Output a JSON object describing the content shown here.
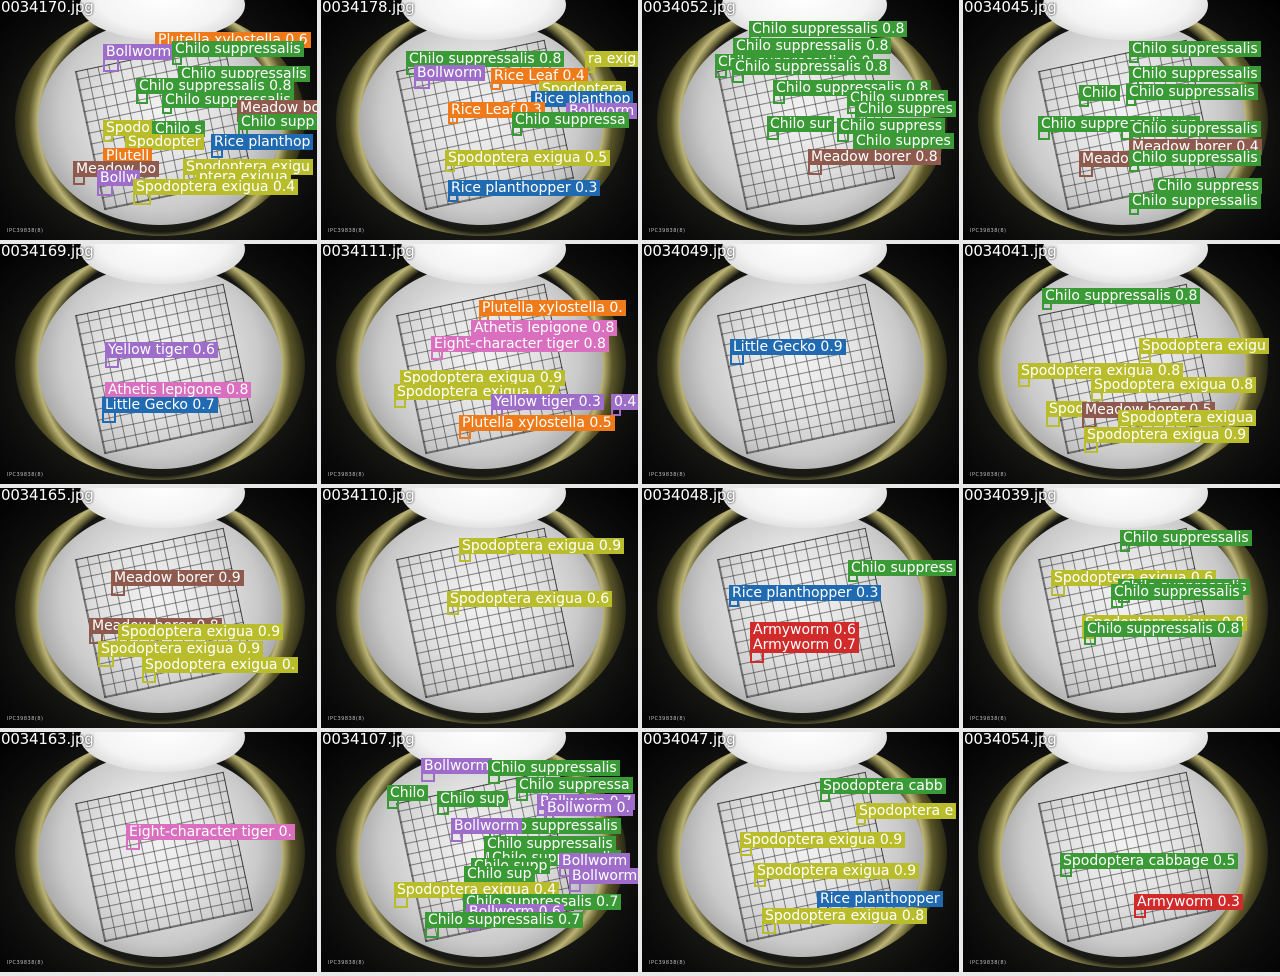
{
  "colors": {
    "Chilo suppressalis": "#3a9a35",
    "Plutella xylostella": "#ef7a1a",
    "Bollworm": "#9d6dc9",
    "Meadow borer": "#8e5a4e",
    "Spodoptera exigua": "#b9bd2c",
    "Rice planthopper": "#1f6ab0",
    "Rice Leaf": "#ef7a1a",
    "Yellow tiger": "#9d6dc9",
    "Athetis lepigone": "#d96fbe",
    "Little Gecko": "#1f6ab0",
    "Eight-character tiger": "#d96fbe",
    "Armyworm": "#d12a2a",
    "Spodoptera cabbage": "#3a9a35"
  },
  "stamp_text": "IPC39838(8)",
  "tiles": [
    {
      "file": "0034170.jpg",
      "detections": [
        {
          "label": "Plutella xylostella 0.6",
          "color": "Plutella xylostella"
        },
        {
          "label": "Bollworm",
          "color": "Bollworm"
        },
        {
          "label": "Chilo suppressalis",
          "color": "Chilo suppressalis"
        },
        {
          "label": "Chilo suppressalis",
          "color": "Chilo suppressalis"
        },
        {
          "label": "Chilo suppressalis 0.8",
          "color": "Chilo suppressalis"
        },
        {
          "label": "Chilo suppressalis",
          "color": "Chilo suppressalis"
        },
        {
          "label": "Meadow bo",
          "color": "Meadow borer"
        },
        {
          "label": "Spodo",
          "color": "Spodoptera exigua"
        },
        {
          "label": "Chilo s",
          "color": "Chilo suppressalis"
        },
        {
          "label": "Chilo supp",
          "color": "Chilo suppressalis"
        },
        {
          "label": "Spodopter",
          "color": "Spodoptera exigua"
        },
        {
          "label": "Rice planthop",
          "color": "Rice planthopper"
        },
        {
          "label": "Plutell",
          "color": "Plutella xylostella"
        },
        {
          "label": "Meadow bo",
          "color": "Meadow borer"
        },
        {
          "label": "Spodoptera exigu",
          "color": "Spodoptera exigua"
        },
        {
          "label": "Bollw",
          "color": "Bollworm"
        },
        {
          "label": "ptera exigua",
          "color": "Spodoptera exigua"
        },
        {
          "label": "Spodoptera exigua 0.4",
          "color": "Spodoptera exigua"
        }
      ]
    },
    {
      "file": "0034178.jpg",
      "detections": [
        {
          "label": "Chilo suppressalis 0.8",
          "color": "Chilo suppressalis"
        },
        {
          "label": "ra exig",
          "color": "Spodoptera exigua"
        },
        {
          "label": "Bollworm",
          "color": "Bollworm"
        },
        {
          "label": "Rice Leaf 0.4",
          "color": "Rice Leaf"
        },
        {
          "label": "Spodoptera",
          "color": "Spodoptera exigua"
        },
        {
          "label": "Rice planthop",
          "color": "Rice planthopper"
        },
        {
          "label": "Rice Leaf 0.3",
          "color": "Rice Leaf"
        },
        {
          "label": "Bollworm",
          "color": "Bollworm"
        },
        {
          "label": "Chilo suppressa",
          "color": "Chilo suppressalis"
        },
        {
          "label": "Spodoptera exigua 0.5",
          "color": "Spodoptera exigua"
        },
        {
          "label": "Rice planthopper 0.3",
          "color": "Rice planthopper"
        }
      ]
    },
    {
      "file": "0034052.jpg",
      "detections": [
        {
          "label": "Chilo suppressalis 0.8",
          "color": "Chilo suppressalis"
        },
        {
          "label": "Chilo suppressalis 0.8",
          "color": "Chilo suppressalis"
        },
        {
          "label": "Chilo suppressalis 0.8",
          "color": "Chilo suppressalis"
        },
        {
          "label": "Chilo suppressalis 0.8",
          "color": "Chilo suppressalis"
        },
        {
          "label": "Chilo suppressalis 0.8",
          "color": "Chilo suppressalis"
        },
        {
          "label": "Chilo suppres",
          "color": "Chilo suppressalis"
        },
        {
          "label": "Chilo suppres",
          "color": "Chilo suppressalis"
        },
        {
          "label": "Chilo sur",
          "color": "Chilo suppressalis"
        },
        {
          "label": "Chilo suppress",
          "color": "Chilo suppressalis"
        },
        {
          "label": "Chilo suppres",
          "color": "Chilo suppressalis"
        },
        {
          "label": "Meadow borer 0.8",
          "color": "Meadow borer"
        }
      ]
    },
    {
      "file": "0034045.jpg",
      "detections": [
        {
          "label": "Chilo suppressalis",
          "color": "Chilo suppressalis"
        },
        {
          "label": "Chilo suppressalis",
          "color": "Chilo suppressalis"
        },
        {
          "label": "Chilo suppressalis",
          "color": "Chilo suppressalis"
        },
        {
          "label": "Chilo",
          "color": "Chilo suppressalis"
        },
        {
          "label": "Chilo supp",
          "color": "Chilo suppressalis"
        },
        {
          "label": "Chilo suppressalis",
          "color": "Chilo suppressalis"
        },
        {
          "label": "Chilo suppressalis",
          "color": "Chilo suppressalis"
        },
        {
          "label": "Meadow borer 0.4",
          "color": "Meadow borer"
        },
        {
          "label": "Meado",
          "color": "Meadow borer"
        },
        {
          "label": "Chilo suppressalis",
          "color": "Chilo suppressalis"
        },
        {
          "label": "Chilo suppress",
          "color": "Chilo suppressalis"
        },
        {
          "label": "Chilo suppressalis",
          "color": "Chilo suppressalis"
        }
      ]
    },
    {
      "file": "0034169.jpg",
      "detections": [
        {
          "label": "Yellow tiger 0.6",
          "color": "Yellow tiger"
        },
        {
          "label": "Athetis lepigone 0.8",
          "color": "Athetis lepigone"
        },
        {
          "label": "Little Gecko 0.7",
          "color": "Little Gecko"
        }
      ]
    },
    {
      "file": "0034111.jpg",
      "detections": [
        {
          "label": "Plutella xylostella 0.",
          "color": "Plutella xylostella"
        },
        {
          "label": "Athetis lepigone 0.8",
          "color": "Athetis lepigone"
        },
        {
          "label": "Eight-character tiger 0.8",
          "color": "Eight-character tiger"
        },
        {
          "label": "Spodoptera exigua 0.9",
          "color": "Spodoptera exigua"
        },
        {
          "label": "Spodoptera exigua 0.7",
          "color": "Spodoptera exigua"
        },
        {
          "label": "Yellow tiger 0.3",
          "color": "Yellow tiger"
        },
        {
          "label": "0.4",
          "color": "Yellow tiger"
        },
        {
          "label": "Plutella xylostella 0.5",
          "color": "Plutella xylostella"
        }
      ]
    },
    {
      "file": "0034049.jpg",
      "detections": [
        {
          "label": "Little Gecko 0.9",
          "color": "Little Gecko"
        }
      ]
    },
    {
      "file": "0034041.jpg",
      "detections": [
        {
          "label": "Chilo suppressalis 0.8",
          "color": "Chilo suppressalis"
        },
        {
          "label": "Spodoptera exigu",
          "color": "Spodoptera exigua"
        },
        {
          "label": "Spodoptera exigua 0.8",
          "color": "Spodoptera exigua"
        },
        {
          "label": "Spodoptera exigua 0.8",
          "color": "Spodoptera exigua"
        },
        {
          "label": "Spod",
          "color": "Spodoptera exigua"
        },
        {
          "label": "Meadow borer 0.5",
          "color": "Meadow borer"
        },
        {
          "label": "Spodoptera exigua",
          "color": "Spodoptera exigua"
        },
        {
          "label": "Spodoptera exigua 0.9",
          "color": "Spodoptera exigua"
        }
      ]
    },
    {
      "file": "0034165.jpg",
      "detections": [
        {
          "label": "Meadow borer 0.9",
          "color": "Meadow borer"
        },
        {
          "label": "Meadow borer 0.8",
          "color": "Meadow borer"
        },
        {
          "label": "Spodoptera exigua 0.9",
          "color": "Spodoptera exigua"
        },
        {
          "label": "Spodoptera exigua 0.9",
          "color": "Spodoptera exigua"
        },
        {
          "label": "Spodoptera exigua 0.",
          "color": "Spodoptera exigua"
        }
      ]
    },
    {
      "file": "0034110.jpg",
      "detections": [
        {
          "label": "Spodoptera exigua 0.9",
          "color": "Spodoptera exigua"
        },
        {
          "label": "Spodoptera exigua 0.6",
          "color": "Spodoptera exigua"
        }
      ]
    },
    {
      "file": "0034048.jpg",
      "detections": [
        {
          "label": "Chilo suppress",
          "color": "Chilo suppressalis"
        },
        {
          "label": "Rice planthopper 0.3",
          "color": "Rice planthopper"
        },
        {
          "label": "Armyworm 0.6",
          "color": "Armyworm"
        },
        {
          "label": "Armyworm 0.7",
          "color": "Armyworm"
        }
      ]
    },
    {
      "file": "0034039.jpg",
      "detections": [
        {
          "label": "Chilo suppressalis",
          "color": "Chilo suppressalis"
        },
        {
          "label": "Spodoptera exigua 0.6",
          "color": "Spodoptera exigua"
        },
        {
          "label": "Chilo suppressalis",
          "color": "Chilo suppressalis"
        },
        {
          "label": "Chilo suppressalis",
          "color": "Chilo suppressalis"
        },
        {
          "label": "Spodoptera exigua 0.8",
          "color": "Spodoptera exigua"
        },
        {
          "label": "Chilo suppressalis 0.8",
          "color": "Chilo suppressalis"
        }
      ]
    },
    {
      "file": "0034163.jpg",
      "detections": [
        {
          "label": "Eight-character tiger 0.",
          "color": "Eight-character tiger"
        }
      ]
    },
    {
      "file": "0034107.jpg",
      "detections": [
        {
          "label": "Bollworm",
          "color": "Bollworm"
        },
        {
          "label": "Chilo suppressalis",
          "color": "Chilo suppressalis"
        },
        {
          "label": "Chilo suppressa",
          "color": "Chilo suppressalis"
        },
        {
          "label": "Chilo",
          "color": "Chilo suppressalis"
        },
        {
          "label": "Chilo sup",
          "color": "Chilo suppressalis"
        },
        {
          "label": "Bollworm 0.7",
          "color": "Bollworm"
        },
        {
          "label": "Bollworm 0.",
          "color": "Bollworm"
        },
        {
          "label": "Chilo suppressalis",
          "color": "Chilo suppressalis"
        },
        {
          "label": "Bollworm",
          "color": "Bollworm"
        },
        {
          "label": "Chilo suppressalis",
          "color": "Chilo suppressalis"
        },
        {
          "label": "Chilo suppressalis",
          "color": "Chilo suppressalis"
        },
        {
          "label": "Chilo supp",
          "color": "Chilo suppressalis"
        },
        {
          "label": "Bollworm",
          "color": "Bollworm"
        },
        {
          "label": "Chilo sup",
          "color": "Chilo suppressalis"
        },
        {
          "label": "Bollworm 0.4",
          "color": "Bollworm"
        },
        {
          "label": "Spodoptera exigua 0.4",
          "color": "Spodoptera exigua"
        },
        {
          "label": "Chilo suppressalis 0.7",
          "color": "Chilo suppressalis"
        },
        {
          "label": "Bollworm 0.6",
          "color": "Bollworm"
        },
        {
          "label": "Chilo suppressalis 0.7",
          "color": "Chilo suppressalis"
        }
      ]
    },
    {
      "file": "0034047.jpg",
      "detections": [
        {
          "label": "Spodoptera cabb",
          "color": "Spodoptera cabbage"
        },
        {
          "label": "Spodoptera e",
          "color": "Spodoptera exigua"
        },
        {
          "label": "Spodoptera exigua 0.9",
          "color": "Spodoptera exigua"
        },
        {
          "label": "Spodoptera exigua 0.9",
          "color": "Spodoptera exigua"
        },
        {
          "label": "Rice planthopper",
          "color": "Rice planthopper"
        },
        {
          "label": "Spodoptera exigua 0.8",
          "color": "Spodoptera exigua"
        }
      ]
    },
    {
      "file": "0034054.jpg",
      "detections": [
        {
          "label": "Spodoptera cabbage 0.5",
          "color": "Spodoptera cabbage"
        },
        {
          "label": "Armyworm 0.3",
          "color": "Armyworm"
        }
      ]
    }
  ]
}
